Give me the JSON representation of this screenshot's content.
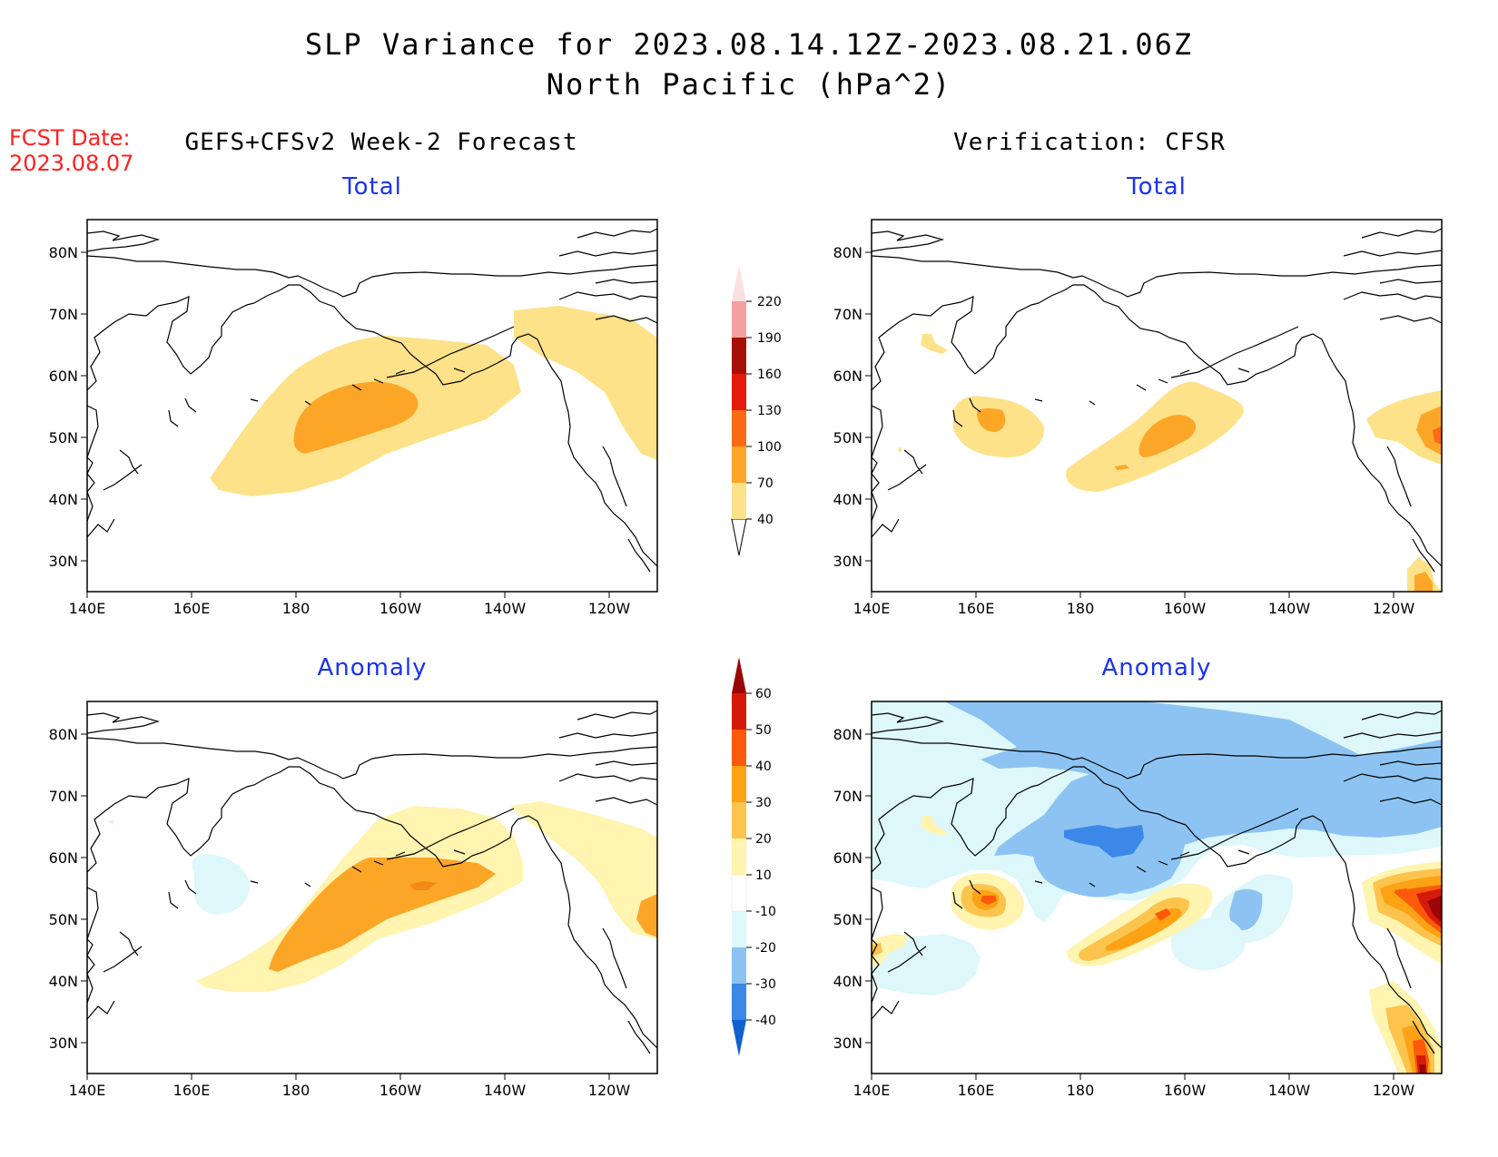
{
  "title": {
    "line1": "SLP Variance for 2023.08.14.12Z-2023.08.21.06Z",
    "line2": "North Pacific (hPa^2)"
  },
  "forecast_date": {
    "label": "FCST Date:",
    "value": "2023.08.07"
  },
  "columns": {
    "left": "GEFS+CFSv2 Week-2 Forecast",
    "right": "Verification: CFSR"
  },
  "panels": {
    "total": "Total",
    "anomaly": "Anomaly"
  },
  "axes": {
    "x_ticks": [
      "140E",
      "160E",
      "180",
      "160W",
      "140W",
      "120W"
    ],
    "y_ticks": [
      "80N",
      "70N",
      "60N",
      "50N",
      "40N",
      "30N"
    ]
  },
  "colorbars": {
    "total": {
      "levels": [
        "40",
        "70",
        "100",
        "130",
        "160",
        "190",
        "220"
      ],
      "colors": [
        "#fde28a",
        "#fca628",
        "#fb6a14",
        "#e41a0c",
        "#a50f06",
        "#f5a0a0",
        "#fde0e0"
      ]
    },
    "anomaly": {
      "levels": [
        "-40",
        "-30",
        "-20",
        "-10",
        "10",
        "20",
        "30",
        "40",
        "50",
        "60"
      ],
      "colors": [
        "#1060d0",
        "#3b88e8",
        "#8cc3f2",
        "#ddf7fb",
        "#ffffff",
        "#fff4b0",
        "#fcc34d",
        "#fca214",
        "#fb5a0a",
        "#d61a0a",
        "#9a0505"
      ]
    }
  },
  "map_colors": {
    "yellow": "#fde28a",
    "orange": "#fca628",
    "orange_dark": "#fb6a14",
    "red": "#e41a0c",
    "darkred": "#a50f06",
    "pale_yellow": "#fff4b0",
    "light_orange": "#fcc34d",
    "pale_cyan": "#ddf7fb",
    "light_blue": "#8cc3f2",
    "blue": "#3b88e8"
  }
}
